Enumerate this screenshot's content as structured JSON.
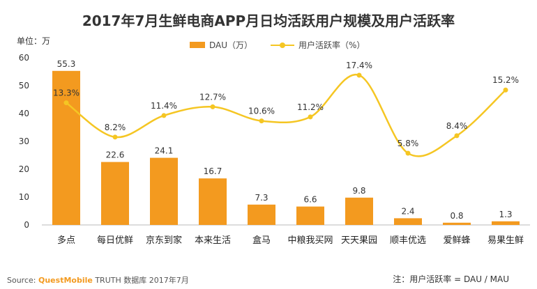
{
  "chart_data": {
    "type": "bar",
    "title": "2017年7月生鲜电商APP月日均活跃用户规模及用户活跃率",
    "unit_label": "单位：万",
    "categories": [
      "多点",
      "每日优鲜",
      "京东到家",
      "本来生活",
      "盒马",
      "中粮我买网",
      "天天果园",
      "顺丰优选",
      "爱鲜蜂",
      "易果生鲜"
    ],
    "ylim": [
      0,
      60
    ],
    "yticks": [
      0,
      10,
      20,
      30,
      40,
      50,
      60
    ],
    "series": [
      {
        "name": "DAU（万）",
        "type": "bar",
        "color": "#f39a1f",
        "values": [
          55.3,
          22.6,
          24.1,
          16.7,
          7.3,
          6.6,
          9.8,
          2.4,
          0.8,
          1.3
        ],
        "labels": [
          "55.3",
          "22.6",
          "24.1",
          "16.7",
          "7.3",
          "6.6",
          "9.8",
          "2.4",
          "0.8",
          "1.3"
        ]
      },
      {
        "name": "用户活跃率（%）",
        "type": "line",
        "color": "#f5c623",
        "values": [
          13.3,
          8.2,
          11.4,
          12.7,
          10.6,
          11.2,
          17.4,
          5.8,
          8.4,
          15.2
        ],
        "labels": [
          "13.3%",
          "8.2%",
          "11.4%",
          "12.7%",
          "10.6%",
          "11.2%",
          "17.4%",
          "5.8%",
          "8.4%",
          "15.2%"
        ]
      }
    ]
  },
  "footer": {
    "source_label": "Source:",
    "brand": "QuestMobile",
    "source_rest": "TRUTH 数据库 2017年7月",
    "note": "注：用户活跃率 = DAU / MAU"
  }
}
